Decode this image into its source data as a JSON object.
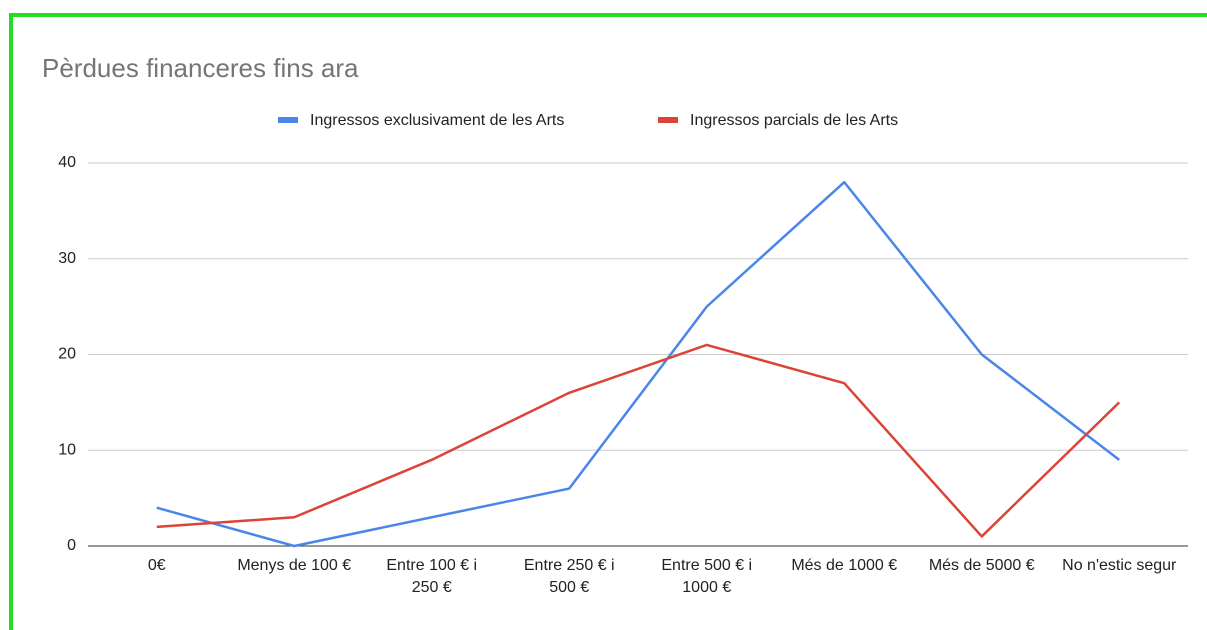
{
  "chart_data": {
    "type": "line",
    "title": "Pèrdues financeres fins ara",
    "categories": [
      "0€",
      "Menys de 100 €",
      "Entre 100 € i 250 €",
      "Entre 250 € i 500 €",
      "Entre 500 € i 1000 €",
      "Més de 1000 €",
      "Més de 5000 €",
      "No n'estic segur"
    ],
    "series": [
      {
        "name": "Ingressos exclusivament de les Arts",
        "color": "#4a86e8",
        "values": [
          4,
          0,
          3,
          6,
          25,
          38,
          20,
          9
        ]
      },
      {
        "name": "Ingressos parcials de les Arts",
        "color": "#db4437",
        "values": [
          2,
          3,
          9,
          16,
          21,
          17,
          1,
          15
        ]
      }
    ],
    "ylim": [
      0,
      40
    ],
    "yticks": [
      0,
      10,
      20,
      30,
      40
    ],
    "grid": true,
    "legend": "top"
  }
}
